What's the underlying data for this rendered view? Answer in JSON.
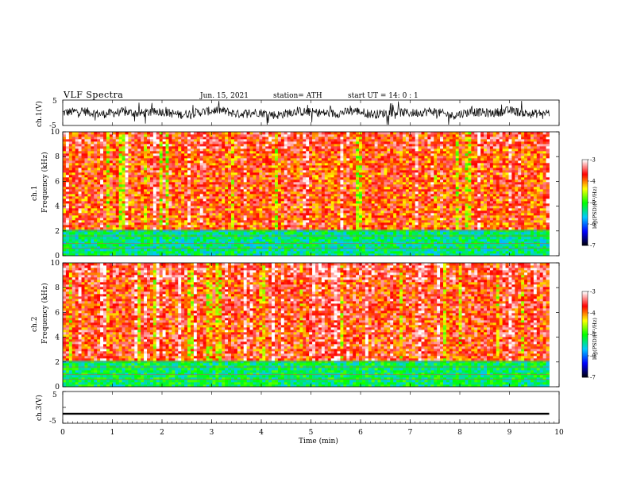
{
  "header": {
    "title": "VLF  Spectra",
    "date": "Jun. 15, 2021",
    "station": "station= ATH",
    "start": "start  UT  =   14: 0  : 1"
  },
  "chart_data": [
    {
      "type": "line",
      "title": "",
      "ylabel": "ch.1(V)",
      "ylim": [
        -5,
        5
      ],
      "yticks": [
        "5",
        "-5"
      ],
      "x_range": [
        0,
        9.8
      ],
      "series": [
        {
          "values": [
            0,
            1.2,
            -1.0,
            0.6,
            -0.4,
            0.9,
            -1.3,
            0.3,
            1.8,
            -0.8,
            0.4,
            -1.6,
            0.9,
            0.2,
            -0.6,
            1.4,
            -1.1,
            0.5,
            -0.2,
            1.0,
            -1.9,
            0.7,
            -0.3,
            1.5,
            -0.9,
            0.1
          ]
        }
      ],
      "baseline": 0
    },
    {
      "type": "heatmap",
      "ylabel_channel": "ch.1",
      "ylabel": "Frequency  (kHz)",
      "ylim": [
        0,
        10
      ],
      "yticks": [
        "10",
        "8",
        "6",
        "4",
        "2",
        "0"
      ],
      "x_range": [
        0,
        9.8
      ],
      "colorbar": {
        "label": "log(PSD)(V²/Hz)",
        "ticks": [
          "-3",
          "-4",
          "-5",
          "-6",
          "-7"
        ],
        "range": [
          -7,
          -3
        ]
      },
      "approx_levels": {
        "high_freq_2_to_10kHz": -3.8,
        "low_freq_0_to_2kHz": -5.3
      }
    },
    {
      "type": "heatmap",
      "ylabel_channel": "ch.2",
      "ylabel": "Frequency  (kHz)",
      "ylim": [
        0,
        10
      ],
      "yticks": [
        "10",
        "8",
        "6",
        "4",
        "2",
        "0"
      ],
      "x_range": [
        0,
        9.8
      ],
      "colorbar": {
        "label": "log(PSD)(V²/Hz)",
        "ticks": [
          "-3",
          "-4",
          "-5",
          "-6",
          "-7"
        ],
        "range": [
          -7,
          -3
        ]
      },
      "approx_levels": {
        "high_freq_2_to_10kHz": -3.7,
        "low_freq_0_to_2kHz": -5.2
      }
    },
    {
      "type": "line",
      "ylabel": "ch.3(V)",
      "ylim": [
        -5,
        5
      ],
      "yticks": [
        "5",
        "0",
        "-5"
      ],
      "x_range": [
        0,
        9.8
      ],
      "series": [
        {
          "values": [
            -2,
            -2.1,
            -1.9,
            -2,
            -2.05,
            -1.95,
            -2,
            -2.1,
            -1.9,
            -2
          ]
        }
      ]
    }
  ],
  "xaxis": {
    "label": "Time  (min)",
    "ticks": [
      "0",
      "1",
      "2",
      "3",
      "4",
      "5",
      "6",
      "7",
      "8",
      "9",
      "10"
    ],
    "range": [
      0,
      10
    ]
  },
  "colors": {
    "scale": [
      "#000000",
      "#0000ff",
      "#00c8ff",
      "#00ff00",
      "#ffff00",
      "#ff0000",
      "#ffffff"
    ]
  }
}
